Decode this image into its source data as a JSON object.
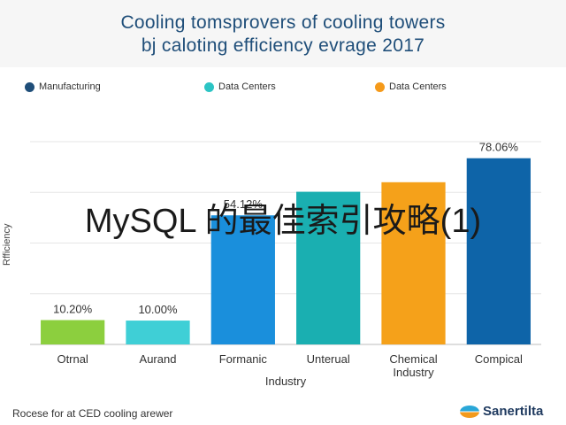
{
  "chart_data": {
    "type": "bar",
    "title": "Cooling tomsprovers of cooling towers",
    "subtitle": "bj caloting efficiency evrage 2017",
    "xlabel": "Industry",
    "ylabel": "Rfficiency",
    "categories": [
      "Otrnal",
      "Aurand",
      "Formanic",
      "Unterual",
      "Chemical Industry",
      "Compical"
    ],
    "values": [
      10.2,
      10.0,
      54.12,
      64.0,
      68.0,
      78.06
    ],
    "value_labels": [
      "10.20%",
      "10.00%",
      "54.12%",
      "",
      "",
      "78.06%"
    ],
    "bar_colors": [
      "#8ccf3e",
      "#3fcfd6",
      "#1a8fdc",
      "#1aafb1",
      "#f5a11a",
      "#0e64a8"
    ],
    "ylim": [
      0,
      85
    ],
    "grid": true,
    "legend_position": "top",
    "legend": [
      {
        "label": "Manufacturing",
        "color": "#1f4e79"
      },
      {
        "label": "Data Centers",
        "color": "#2cc4c4"
      },
      {
        "label": "Data Centers",
        "color": "#f59a1a"
      }
    ]
  },
  "overlay_text": "MySQL 的最佳索引攻略(1)",
  "footer": {
    "note": "Rocese for at CED cooling arewer",
    "brand": "Sanertilta"
  }
}
